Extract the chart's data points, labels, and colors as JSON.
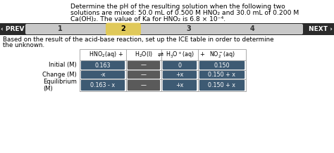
{
  "title_line1": "Determine the pH of the resulting solution when the following two",
  "title_line2": "solutions are mixed: 50.0 mL of 0.500 M HNO₂ and 30.0 mL of 0.200 M",
  "title_line3": "Ca(OH)₂. The value of Ka for HNO₂ is 6.8 × 10⁻⁴.",
  "nav_bg": "#2b2b2b",
  "nav_highlight": "#e0c95a",
  "nav_labels": [
    "PREV",
    "1",
    "2",
    "3",
    "4",
    "NEXT"
  ],
  "subtitle_line1": "Based on the result of the acid-base reaction, set up the ICE table in order to determine",
  "subtitle_line2": "the unknown.",
  "row_labels": [
    "Initial (M)",
    "Change (M)",
    "Equilibrium\n(M)"
  ],
  "cell_color_blue": "#3d5a73",
  "cell_color_gray": "#5a5a5a",
  "table_data": [
    [
      "0.163",
      "—",
      "0",
      "0.150"
    ],
    [
      "-x",
      "—",
      "+x",
      "0.150 + x"
    ],
    [
      "0.163 - x",
      "—",
      "+x",
      "0.150 + x"
    ]
  ]
}
